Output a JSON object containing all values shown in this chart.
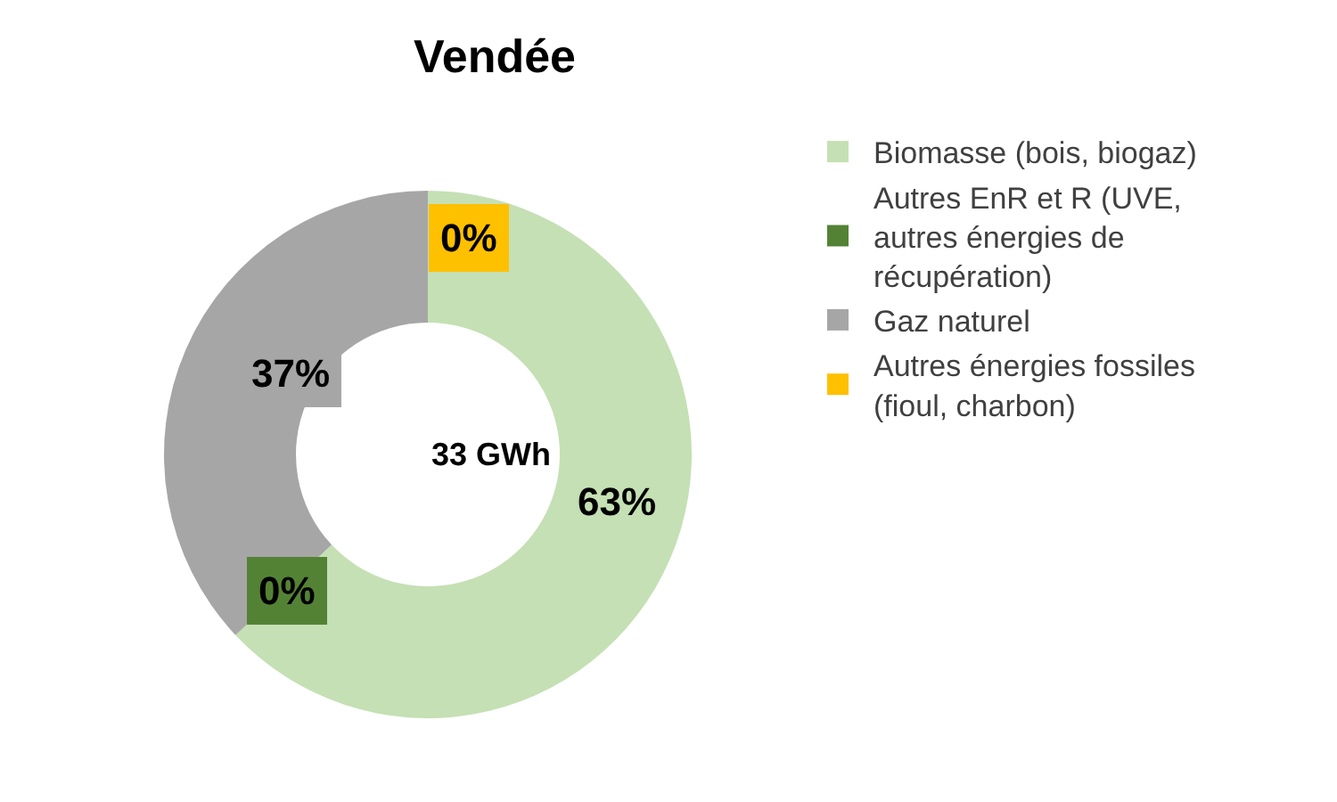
{
  "chart_data": {
    "type": "donut",
    "title": "Vendée",
    "categories": [
      "Biomasse (bois, biogaz)",
      "Autres EnR et R (UVE, autres énergies de récupération)",
      "Gaz naturel",
      "Autres énergies fossiles (fioul, charbon)"
    ],
    "values": [
      63,
      0,
      37,
      0
    ],
    "colors": [
      "#c5e0b4",
      "#548235",
      "#a6a6a6",
      "#ffc000"
    ],
    "value_labels": [
      "63%",
      "0%",
      "37%",
      "0%"
    ],
    "annotations": [
      "33 GWh"
    ],
    "legend": "right"
  }
}
